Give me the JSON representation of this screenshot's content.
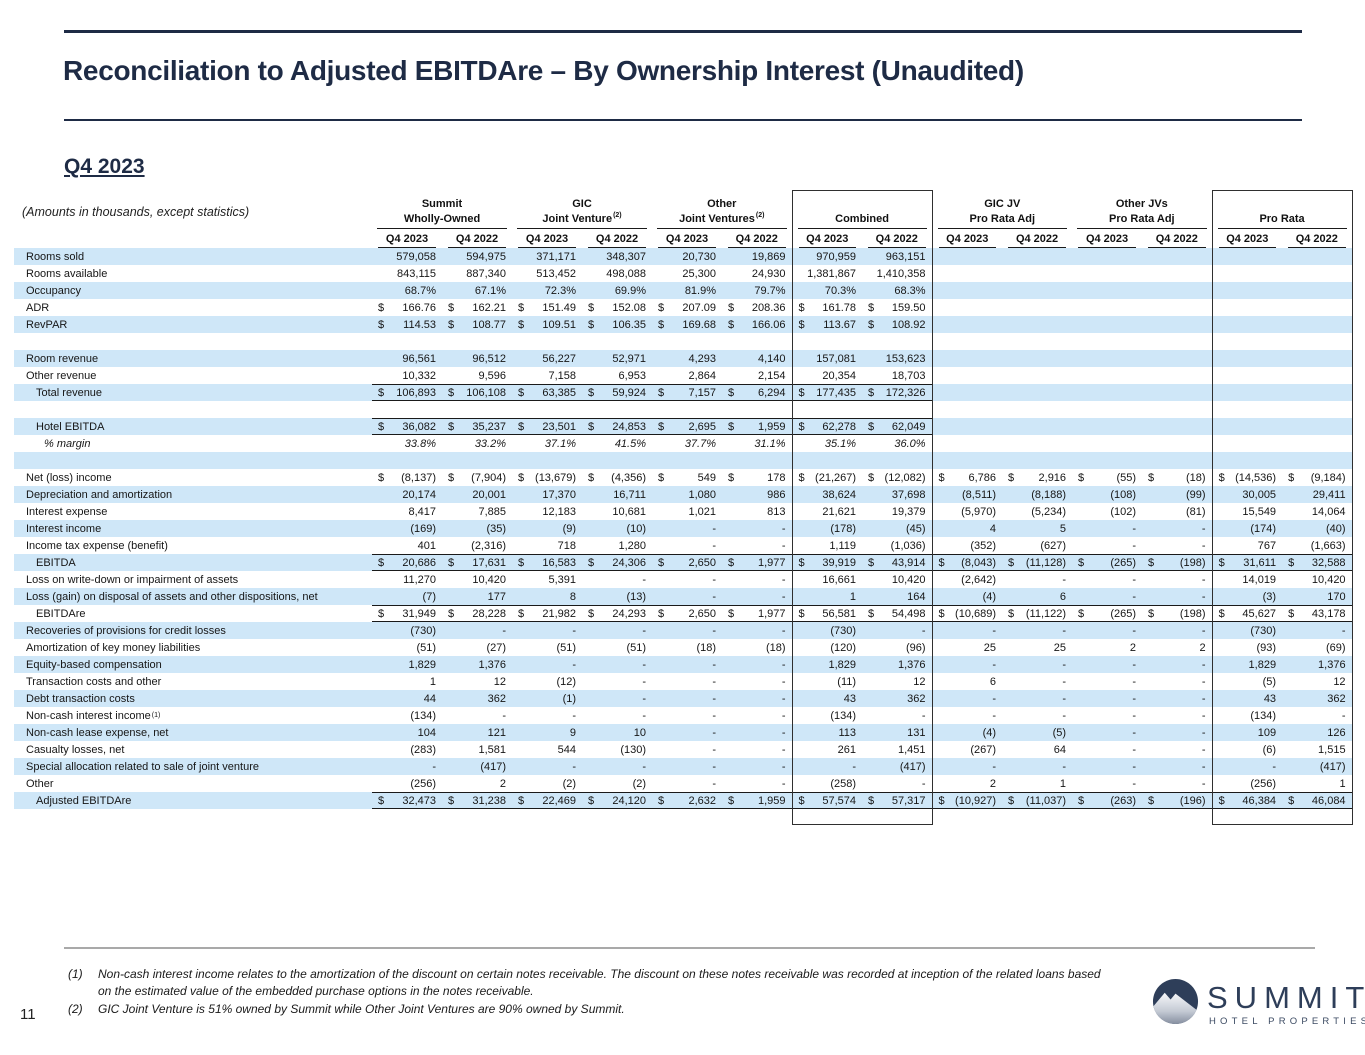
{
  "page_number": "11",
  "header": {
    "title": "Reconciliation to Adjusted EBITDAre – By Ownership Interest (Unaudited)",
    "subtitle": "Q4 2023",
    "amounts_note": "(Amounts in thousands, except statistics)"
  },
  "table": {
    "period_headers": [
      "Q4 2023",
      "Q4 2022"
    ],
    "groups": [
      {
        "lines": [
          "Summit",
          "Wholly-Owned"
        ],
        "sup": "",
        "boxed": false
      },
      {
        "lines": [
          "GIC",
          "Joint Venture"
        ],
        "sup": "(2)",
        "boxed": false
      },
      {
        "lines": [
          "Other",
          "Joint Ventures"
        ],
        "sup": "(2)",
        "boxed": false
      },
      {
        "lines": [
          "Combined"
        ],
        "sup": "",
        "boxed": true
      },
      {
        "lines": [
          "GIC JV",
          "Pro Rata Adj"
        ],
        "sup": "",
        "boxed": false
      },
      {
        "lines": [
          "Other JVs",
          "Pro Rata Adj"
        ],
        "sup": "",
        "boxed": false
      },
      {
        "lines": [
          "Pro Rata"
        ],
        "sup": "",
        "boxed": true
      }
    ],
    "rows": [
      {
        "label": "Rooms sold",
        "values": [
          "579,058",
          "594,975",
          "371,171",
          "348,307",
          "20,730",
          "19,869",
          "970,959",
          "963,151",
          "",
          "",
          "",
          "",
          "",
          ""
        ]
      },
      {
        "label": "Rooms available",
        "values": [
          "843,115",
          "887,340",
          "513,452",
          "498,088",
          "25,300",
          "24,930",
          "1,381,867",
          "1,410,358",
          "",
          "",
          "",
          "",
          "",
          ""
        ]
      },
      {
        "label": "Occupancy",
        "values": [
          "68.7%",
          "67.1%",
          "72.3%",
          "69.9%",
          "81.9%",
          "79.7%",
          "70.3%",
          "68.3%",
          "",
          "",
          "",
          "",
          "",
          ""
        ]
      },
      {
        "label": "ADR",
        "dollar": true,
        "values": [
          "166.76",
          "162.21",
          "151.49",
          "152.08",
          "207.09",
          "208.36",
          "161.78",
          "159.50",
          "",
          "",
          "",
          "",
          "",
          ""
        ]
      },
      {
        "label": "RevPAR",
        "dollar": true,
        "values": [
          "114.53",
          "108.77",
          "109.51",
          "106.35",
          "169.68",
          "166.06",
          "113.67",
          "108.92",
          "",
          "",
          "",
          "",
          "",
          ""
        ]
      },
      {
        "blank": true
      },
      {
        "label": "Room revenue",
        "values": [
          "96,561",
          "96,512",
          "56,227",
          "52,971",
          "4,293",
          "4,140",
          "157,081",
          "153,623",
          "",
          "",
          "",
          "",
          "",
          ""
        ]
      },
      {
        "label": "Other revenue",
        "values": [
          "10,332",
          "9,596",
          "7,158",
          "6,953",
          "2,864",
          "2,154",
          "20,354",
          "18,703",
          "",
          "",
          "",
          "",
          "",
          ""
        ]
      },
      {
        "label": "Total revenue",
        "bold": true,
        "dollar": true,
        "line": true,
        "indent": 1,
        "values": [
          "106,893",
          "106,108",
          "63,385",
          "59,924",
          "7,157",
          "6,294",
          "177,435",
          "172,326",
          "",
          "",
          "",
          "",
          "",
          ""
        ]
      },
      {
        "blank": true
      },
      {
        "label": "Hotel EBITDA",
        "bold": true,
        "dollar": true,
        "line": true,
        "indent": 1,
        "values": [
          "36,082",
          "35,237",
          "23,501",
          "24,853",
          "2,695",
          "1,959",
          "62,278",
          "62,049",
          "",
          "",
          "",
          "",
          "",
          ""
        ]
      },
      {
        "label": "% margin",
        "italic": true,
        "indent": 2,
        "values": [
          "33.8%",
          "33.2%",
          "37.1%",
          "41.5%",
          "37.7%",
          "31.1%",
          "35.1%",
          "36.0%",
          "",
          "",
          "",
          "",
          "",
          ""
        ]
      },
      {
        "blank": true
      },
      {
        "label": "Net (loss) income",
        "dollar": true,
        "values": [
          "(8,137)",
          "(7,904)",
          "(13,679)",
          "(4,356)",
          "549",
          "178",
          "(21,267)",
          "(12,082)",
          "6,786",
          "2,916",
          "(55)",
          "(18)",
          "(14,536)",
          "(9,184)"
        ]
      },
      {
        "label": "Depreciation and amortization",
        "values": [
          "20,174",
          "20,001",
          "17,370",
          "16,711",
          "1,080",
          "986",
          "38,624",
          "37,698",
          "(8,511)",
          "(8,188)",
          "(108)",
          "(99)",
          "30,005",
          "29,411"
        ]
      },
      {
        "label": "Interest expense",
        "values": [
          "8,417",
          "7,885",
          "12,183",
          "10,681",
          "1,021",
          "813",
          "21,621",
          "19,379",
          "(5,970)",
          "(5,234)",
          "(102)",
          "(81)",
          "15,549",
          "14,064"
        ]
      },
      {
        "label": "Interest income",
        "values": [
          "(169)",
          "(35)",
          "(9)",
          "(10)",
          "-",
          "-",
          "(178)",
          "(45)",
          "4",
          "5",
          "-",
          "-",
          "(174)",
          "(40)"
        ]
      },
      {
        "label": "Income tax expense (benefit)",
        "values": [
          "401",
          "(2,316)",
          "718",
          "1,280",
          "-",
          "-",
          "1,119",
          "(1,036)",
          "(352)",
          "(627)",
          "-",
          "-",
          "767",
          "(1,663)"
        ]
      },
      {
        "label": "EBITDA",
        "bold": true,
        "dollar": true,
        "line": true,
        "indent": 1,
        "values": [
          "20,686",
          "17,631",
          "16,583",
          "24,306",
          "2,650",
          "1,977",
          "39,919",
          "43,914",
          "(8,043)",
          "(11,128)",
          "(265)",
          "(198)",
          "31,611",
          "32,588"
        ]
      },
      {
        "label": "Loss on write-down or impairment of assets",
        "values": [
          "11,270",
          "10,420",
          "5,391",
          "-",
          "-",
          "-",
          "16,661",
          "10,420",
          "(2,642)",
          "-",
          "-",
          "-",
          "14,019",
          "10,420"
        ]
      },
      {
        "label": "Loss (gain) on disposal of assets and other dispositions, net",
        "values": [
          "(7)",
          "177",
          "8",
          "(13)",
          "-",
          "-",
          "1",
          "164",
          "(4)",
          "6",
          "-",
          "-",
          "(3)",
          "170"
        ]
      },
      {
        "label": "EBITDAre",
        "bold": true,
        "dollar": true,
        "line": true,
        "indent": 1,
        "values": [
          "31,949",
          "28,228",
          "21,982",
          "24,293",
          "2,650",
          "1,977",
          "56,581",
          "54,498",
          "(10,689)",
          "(11,122)",
          "(265)",
          "(198)",
          "45,627",
          "43,178"
        ]
      },
      {
        "label": "Recoveries of provisions for credit losses",
        "values": [
          "(730)",
          "-",
          "-",
          "-",
          "-",
          "-",
          "(730)",
          "-",
          "-",
          "-",
          "-",
          "-",
          "(730)",
          "-"
        ]
      },
      {
        "label": "Amortization of key money liabilities",
        "values": [
          "(51)",
          "(27)",
          "(51)",
          "(51)",
          "(18)",
          "(18)",
          "(120)",
          "(96)",
          "25",
          "25",
          "2",
          "2",
          "(93)",
          "(69)"
        ]
      },
      {
        "label": "Equity-based compensation",
        "values": [
          "1,829",
          "1,376",
          "-",
          "-",
          "-",
          "-",
          "1,829",
          "1,376",
          "-",
          "-",
          "-",
          "-",
          "1,829",
          "1,376"
        ]
      },
      {
        "label": "Transaction costs and other",
        "values": [
          "1",
          "12",
          "(12)",
          "-",
          "-",
          "-",
          "(11)",
          "12",
          "6",
          "-",
          "-",
          "-",
          "(5)",
          "12"
        ]
      },
      {
        "label": "Debt transaction costs",
        "values": [
          "44",
          "362",
          "(1)",
          "-",
          "-",
          "-",
          "43",
          "362",
          "-",
          "-",
          "-",
          "-",
          "43",
          "362"
        ]
      },
      {
        "label": "Non-cash interest income",
        "sup": "(1)",
        "values": [
          "(134)",
          "-",
          "-",
          "-",
          "-",
          "-",
          "(134)",
          "-",
          "-",
          "-",
          "-",
          "-",
          "(134)",
          "-"
        ]
      },
      {
        "label": "Non-cash lease expense, net",
        "values": [
          "104",
          "121",
          "9",
          "10",
          "-",
          "-",
          "113",
          "131",
          "(4)",
          "(5)",
          "-",
          "-",
          "109",
          "126"
        ]
      },
      {
        "label": "Casualty losses, net",
        "values": [
          "(283)",
          "1,581",
          "544",
          "(130)",
          "-",
          "-",
          "261",
          "1,451",
          "(267)",
          "64",
          "-",
          "-",
          "(6)",
          "1,515"
        ]
      },
      {
        "label": "Special allocation related to sale of joint venture",
        "values": [
          "-",
          "(417)",
          "-",
          "-",
          "-",
          "-",
          "-",
          "(417)",
          "-",
          "-",
          "-",
          "-",
          "-",
          "(417)"
        ]
      },
      {
        "label": "Other",
        "values": [
          "(256)",
          "2",
          "(2)",
          "(2)",
          "-",
          "-",
          "(258)",
          "-",
          "2",
          "1",
          "-",
          "-",
          "(256)",
          "1"
        ]
      },
      {
        "label": "Adjusted EBITDAre",
        "bold": true,
        "dollar": true,
        "line": true,
        "indent": 1,
        "values": [
          "32,473",
          "31,238",
          "22,469",
          "24,120",
          "2,632",
          "1,959",
          "57,574",
          "57,317",
          "(10,927)",
          "(11,037)",
          "(263)",
          "(196)",
          "46,384",
          "46,084"
        ]
      }
    ]
  },
  "footnotes": [
    {
      "num": "(1)",
      "text": "Non-cash interest income relates to the amortization of the discount on certain notes receivable. The discount on these notes receivable was recorded at inception of the related loans based on the estimated value of the embedded purchase options in the notes receivable."
    },
    {
      "num": "(2)",
      "text": "GIC Joint Venture is 51% owned by Summit while Other Joint Ventures are 90% owned by Summit."
    }
  ],
  "logo": {
    "brand": "SUMMIT",
    "tagline": "HOTEL PROPERTIES"
  },
  "colors": {
    "navy": "#1e2b45",
    "stripe": "#cfe7f8",
    "box_border": "#2f2f2f"
  }
}
